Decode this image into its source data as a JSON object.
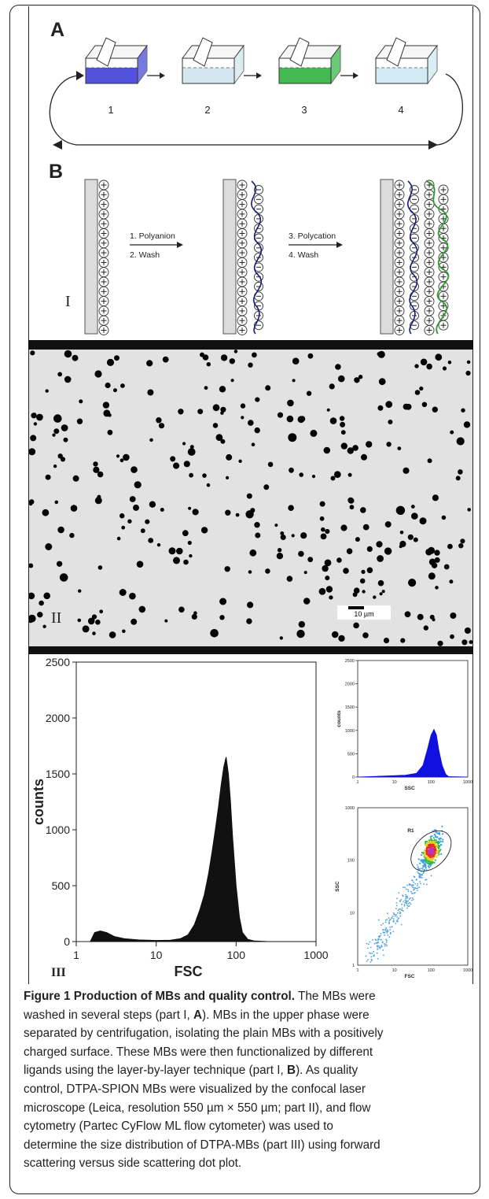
{
  "panel_labels": {
    "A": "A",
    "B": "B",
    "I": "I",
    "II": "II",
    "III": "III"
  },
  "part_A": {
    "steps": [
      "1",
      "2",
      "3",
      "4"
    ],
    "colors": [
      "#3f3fd8",
      "#cfe4ef",
      "#2fb33f",
      "#cde8f2"
    ]
  },
  "part_B": {
    "step1": "1. Polyanion",
    "step2": "2. Wash",
    "step3": "3. Polycation",
    "step4": "4. Wash",
    "polyanion_color": "#1a1a7a",
    "polycation_color": "#2e9a2e"
  },
  "part_II": {
    "scale_bar": "10 µm"
  },
  "chart_data": [
    {
      "type": "area",
      "xlabel": "FSC",
      "ylabel": "counts",
      "xscale": "log",
      "xlim": [
        1,
        1000
      ],
      "ylim": [
        0,
        2500
      ],
      "xticks": [
        "1",
        "10",
        "100",
        "1000"
      ],
      "yticks": [
        "0",
        "500",
        "1000",
        "1500",
        "2000",
        "2500"
      ],
      "x": [
        1.5,
        1.7,
        2,
        2.4,
        3,
        4,
        6,
        10,
        15,
        20,
        25,
        30,
        35,
        40,
        45,
        50,
        55,
        60,
        65,
        70,
        75,
        80,
        85,
        90,
        100,
        110,
        120,
        140,
        170,
        250,
        1000
      ],
      "y": [
        0,
        80,
        95,
        80,
        45,
        25,
        15,
        10,
        12,
        25,
        60,
        150,
        280,
        420,
        600,
        800,
        1000,
        1200,
        1400,
        1560,
        1650,
        1500,
        1250,
        950,
        500,
        220,
        80,
        20,
        5,
        0,
        0
      ]
    },
    {
      "type": "area",
      "xlabel": "SSC",
      "ylabel": "counts",
      "xscale": "log",
      "xlim": [
        1,
        1000
      ],
      "ylim": [
        0,
        2500
      ],
      "xticks": [
        "1",
        "10",
        "100",
        "1000"
      ],
      "yticks": [
        "0",
        "500",
        "1000",
        "1500",
        "2000",
        "2500"
      ],
      "x": [
        1,
        5,
        20,
        40,
        60,
        80,
        100,
        120,
        140,
        160,
        200,
        250,
        300,
        1000
      ],
      "y": [
        0,
        20,
        40,
        80,
        250,
        600,
        900,
        1020,
        900,
        600,
        250,
        60,
        10,
        0
      ],
      "color": "#1010e0"
    },
    {
      "type": "scatter",
      "xlabel": "FSC",
      "ylabel": "SSC",
      "xscale": "log",
      "yscale": "log",
      "xlim": [
        1,
        1000
      ],
      "ylim": [
        1,
        1000
      ],
      "xticks": [
        "1",
        "10",
        "100",
        "1000"
      ],
      "yticks": [
        "1",
        "10",
        "100",
        "1000"
      ],
      "gate": "R1",
      "cluster_center": [
        100,
        150
      ]
    }
  ],
  "caption": {
    "title": "Figure 1 Production of MBs and quality control.",
    "lines": [
      [
        " The MBs were"
      ],
      [
        "washed in several steps (part I, ",
        {
          "b": "A"
        },
        "). MBs in the upper phase were"
      ],
      [
        "separated by centrifugation, isolating the plain MBs with a positively"
      ],
      [
        "charged surface. These MBs were then functionalized by different"
      ],
      [
        "ligands using the layer-by-layer technique (part I, ",
        {
          "b": "B"
        },
        "). As quality"
      ],
      [
        "control, DTPA-SPION MBs were visualized by the confocal laser"
      ],
      [
        "microscope (Leica, resolution 550 µm × 550 µm; part II), and flow"
      ],
      [
        "cytometry (Partec CyFlow ML flow cytometer) was used to"
      ],
      [
        "determine the size distribution of DTPA-MBs (part III) using forward"
      ],
      [
        "scattering versus side scattering dot plot."
      ]
    ]
  }
}
